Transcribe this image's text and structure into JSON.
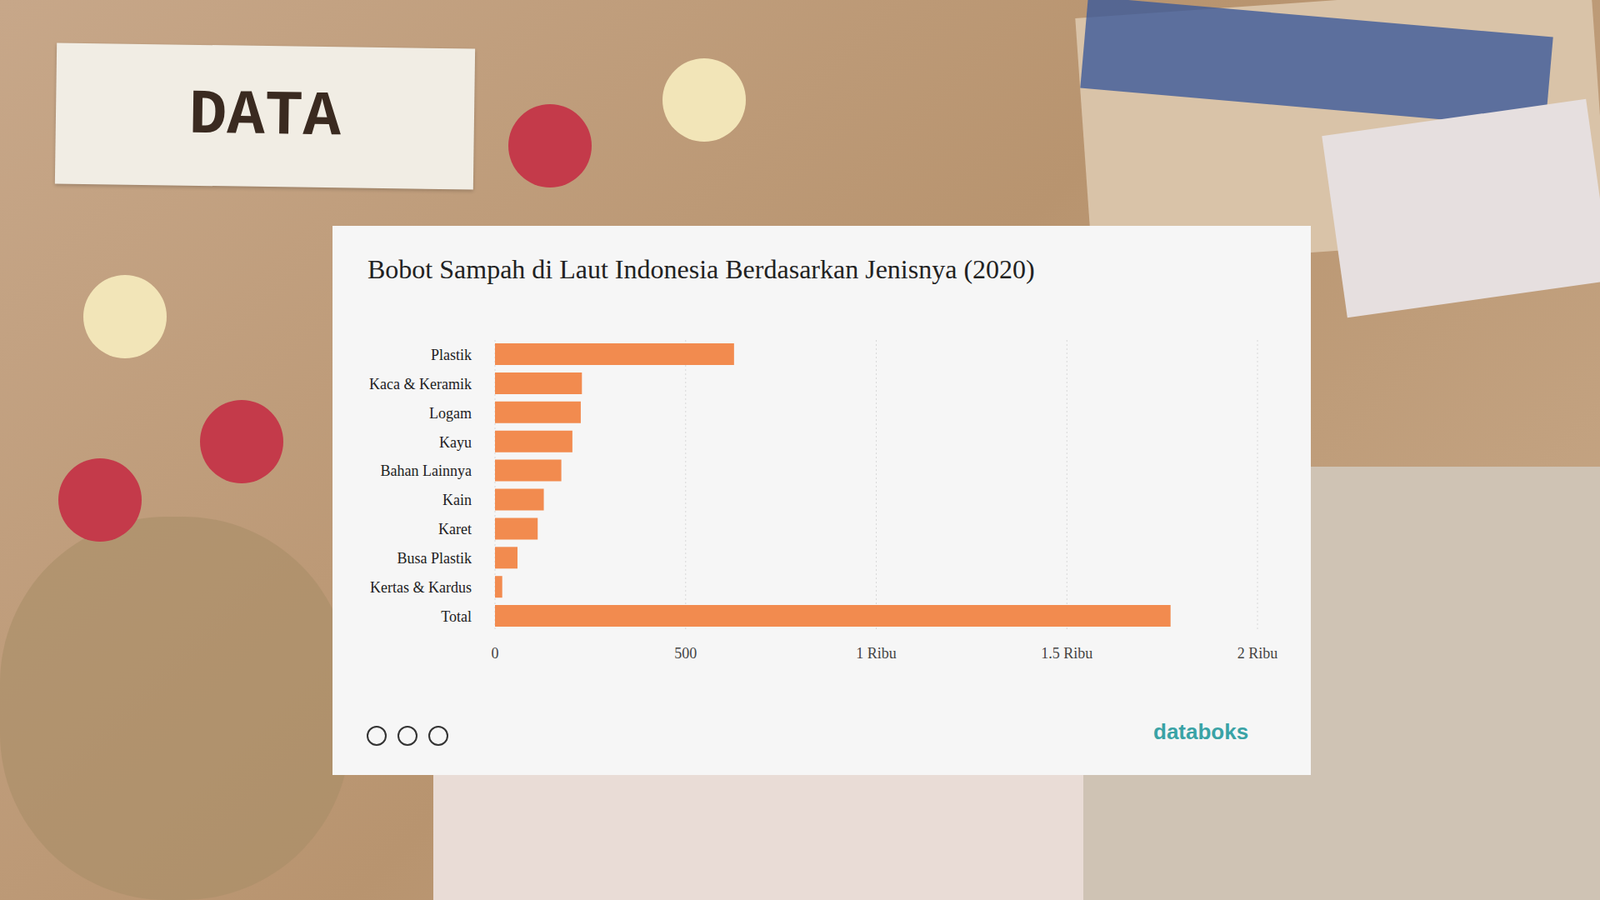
{
  "header": {
    "title": "DATA"
  },
  "chart_data": {
    "type": "bar",
    "orientation": "horizontal",
    "title": "Bobot Sampah di Laut Indonesia Berdasarkan Jenisnya (2020)",
    "categories": [
      "Plastik",
      "Kaca & Keramik",
      "Logam",
      "Kayu",
      "Bahan Lainnya",
      "Kain",
      "Karet",
      "Busa Plastik",
      "Kertas & Kardus",
      "Total"
    ],
    "values": [
      627,
      228,
      225,
      203,
      174,
      128,
      112,
      59,
      19,
      1772
    ],
    "color": "#f28b4f",
    "xlim": [
      0,
      2000
    ],
    "xticks": [
      0,
      500,
      {
        "value": 1000,
        "label": "1 Ribu"
      },
      {
        "value": 1500,
        "label": "1.5 Ribu"
      },
      {
        "value": 2000,
        "label": "2 Ribu"
      }
    ],
    "grid": true,
    "source": "databoks"
  }
}
